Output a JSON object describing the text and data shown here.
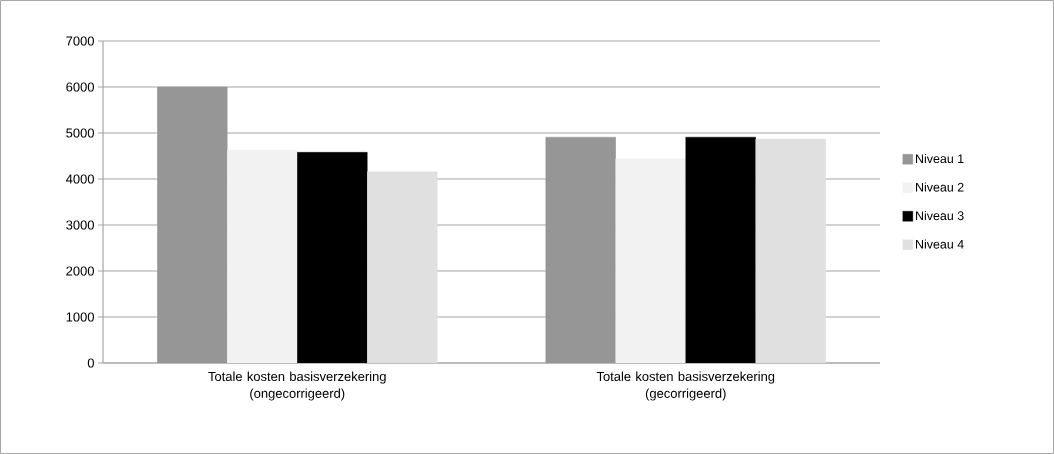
{
  "chart_data": {
    "type": "bar",
    "categories": [
      "Totale kosten basisverzekering (ongecorrigeerd)",
      "Totale kosten basisverzekering (gecorrigeerd)"
    ],
    "series": [
      {
        "name": "Niveau 1",
        "color": "#969696",
        "values": [
          6000,
          4910
        ]
      },
      {
        "name": "Niveau 2",
        "color": "#f2f2f2",
        "values": [
          4630,
          4440
        ]
      },
      {
        "name": "Niveau 3",
        "color": "#000000",
        "values": [
          4580,
          4910
        ]
      },
      {
        "name": "Niveau 4",
        "color": "#e0e0e0",
        "values": [
          4160,
          4870
        ]
      }
    ],
    "ylim": [
      0,
      7000
    ],
    "yticks": [
      0,
      1000,
      2000,
      3000,
      4000,
      5000,
      6000,
      7000
    ],
    "grid": "y",
    "legend": "right"
  }
}
